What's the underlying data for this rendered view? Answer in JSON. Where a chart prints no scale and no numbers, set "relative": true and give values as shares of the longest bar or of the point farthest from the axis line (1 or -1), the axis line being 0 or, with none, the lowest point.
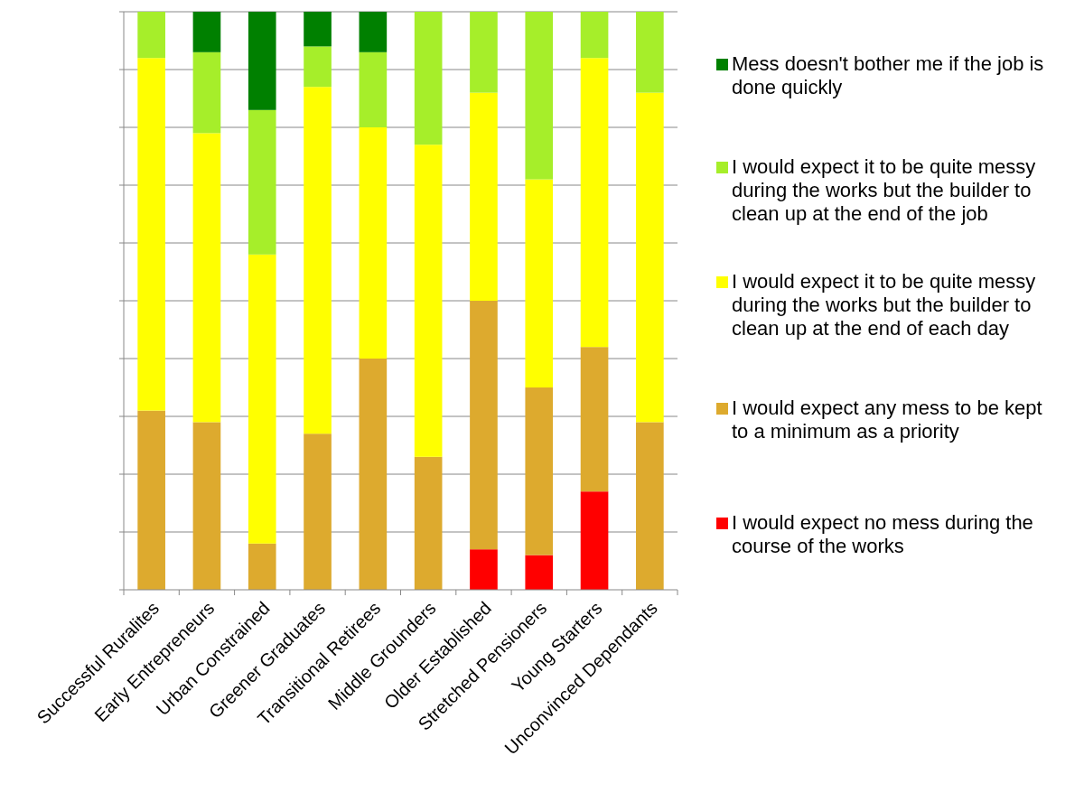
{
  "chart_data": {
    "type": "bar",
    "stacked": true,
    "relative": true,
    "grid": true,
    "legend": "right",
    "categories": [
      "Successful Ruralites",
      "Early Entrepreneurs",
      "Urban Constrained",
      "Greener Graduates",
      "Transitional Retirees",
      "Middle Grounders",
      "Older Established",
      "Stretched Pensioners",
      "Young Starters",
      "Unconvinced Dependants"
    ],
    "series": [
      {
        "name": "I would expect no mess during the course of the works",
        "color": "#ff0000",
        "values": [
          0,
          0,
          0,
          0,
          0,
          0,
          0.07,
          0.06,
          0.17,
          0
        ]
      },
      {
        "name": "I would expect any mess to be kept to a minimum as a priority",
        "color": "#ddaa2e",
        "values": [
          0.31,
          0.29,
          0.08,
          0.27,
          0.4,
          0.23,
          0.43,
          0.29,
          0.25,
          0.29
        ]
      },
      {
        "name": "I would expect it to be quite messy during the works but the builder to clean up at the end of each day",
        "color": "#ffff00",
        "values": [
          0.61,
          0.5,
          0.5,
          0.6,
          0.4,
          0.54,
          0.36,
          0.36,
          0.5,
          0.57
        ]
      },
      {
        "name": "I would expect it to be quite messy during the works but the builder to clean up at the end of the job",
        "color": "#a6ee2a",
        "values": [
          0.08,
          0.14,
          0.25,
          0.07,
          0.13,
          0.23,
          0.14,
          0.29,
          0.08,
          0.14
        ]
      },
      {
        "name": "Mess doesn't bother me if the job is done quickly",
        "color": "#008000",
        "values": [
          0,
          0.07,
          0.17,
          0.06,
          0.07,
          0,
          0,
          0,
          0,
          0
        ]
      }
    ]
  }
}
